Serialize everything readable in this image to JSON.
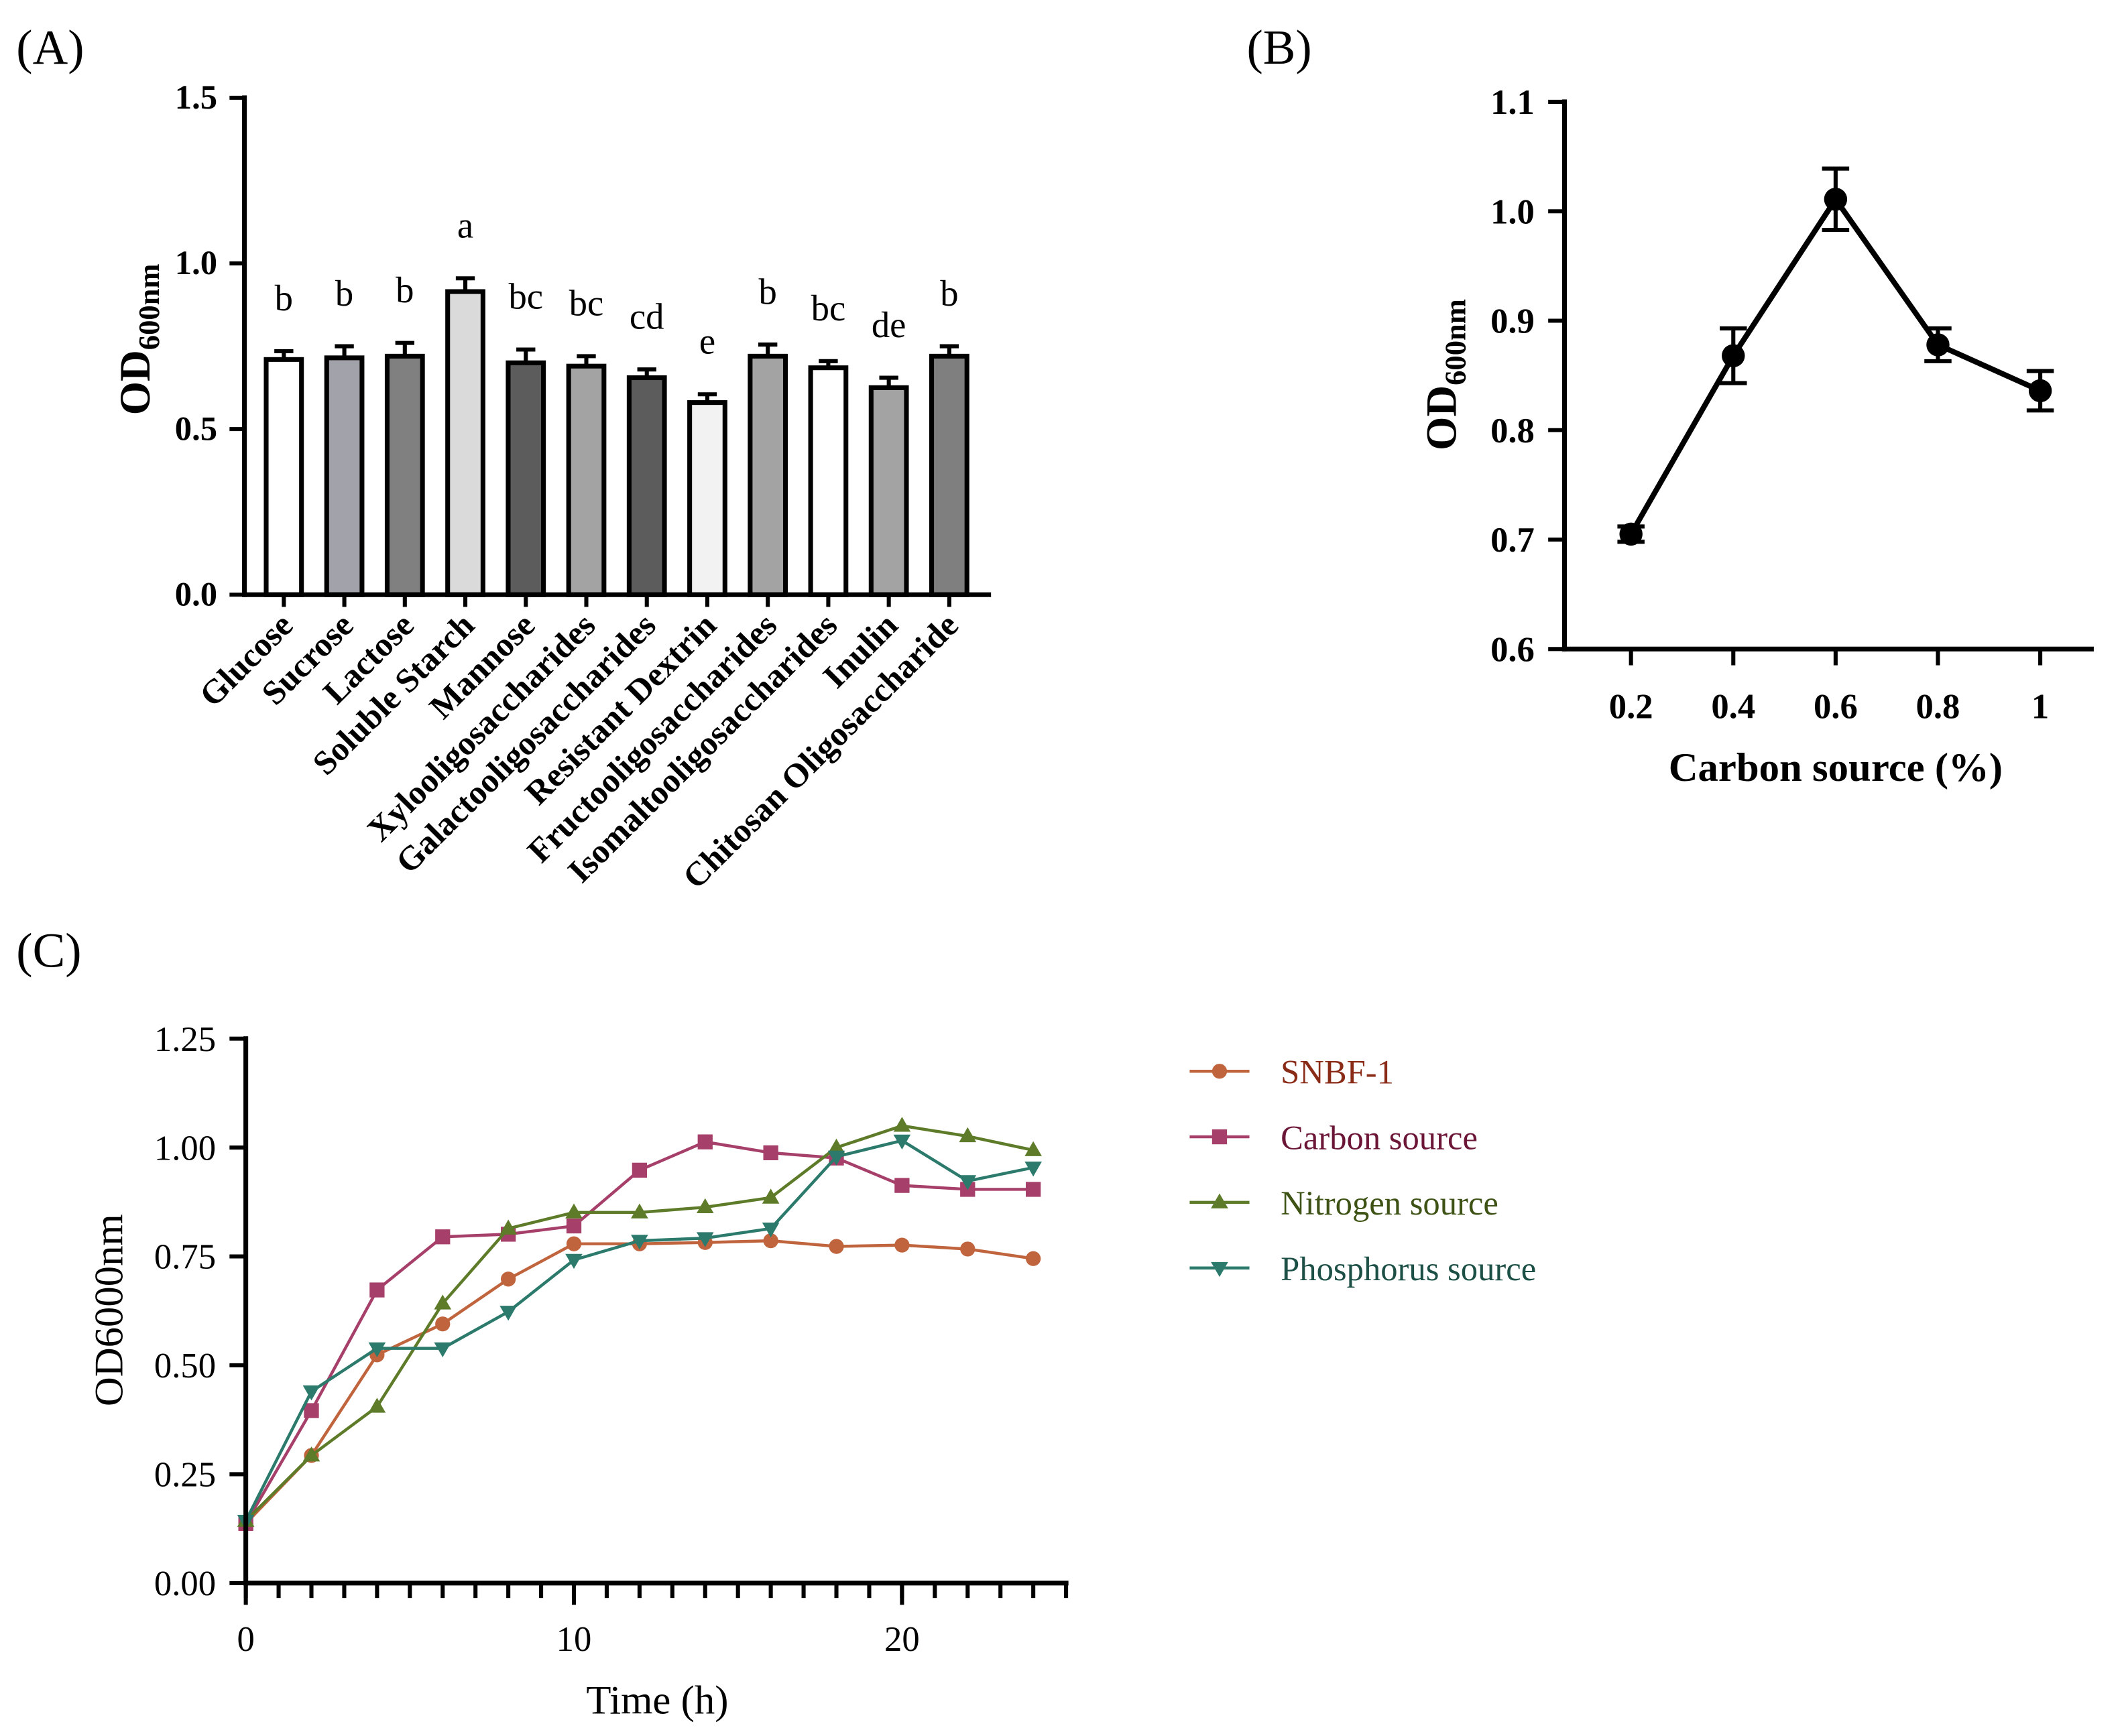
{
  "chart_data": [
    {
      "panel": "(A)",
      "type": "bar",
      "categories": [
        "Glucose",
        "Sucrose",
        "Lactose",
        "Soluble Starch",
        "Mannose",
        "Xylooligosaccharides",
        "Galactooligosaccharides",
        "Resistant Dextrin",
        "Fructooligosaccharides",
        "Isomaltooligosaccharides",
        "Inulin",
        "Chitosan Oligosaccharide"
      ],
      "values": [
        0.71,
        0.715,
        0.72,
        0.915,
        0.7,
        0.69,
        0.655,
        0.58,
        0.72,
        0.685,
        0.625,
        0.72
      ],
      "errors": [
        0.025,
        0.035,
        0.04,
        0.04,
        0.04,
        0.03,
        0.025,
        0.025,
        0.035,
        0.02,
        0.03,
        0.03
      ],
      "letters": [
        "b",
        "b",
        "b",
        "a",
        "bc",
        "bc",
        "cd",
        "e",
        "b",
        "bc",
        "de",
        "b"
      ],
      "bar_colors": [
        "#ffffff",
        "#a2a2aa",
        "#808080",
        "#dadada",
        "#5c5c5c",
        "#a3a3a3",
        "#5c5c5c",
        "#f2f2f2",
        "#a3a3a3",
        "#ffffff",
        "#a3a3a3",
        "#7f7f7f"
      ],
      "ylabel": {
        "main": "OD",
        "sub": "600nm"
      },
      "ylim": [
        0,
        1.5
      ],
      "yticks": [
        0,
        0.5,
        1.0,
        1.5
      ],
      "ytick_labels": [
        "0.0",
        "0.5",
        "1.0",
        "1.5"
      ],
      "grid": false
    },
    {
      "panel": "(B)",
      "type": "line",
      "x": [
        0.2,
        0.4,
        0.6,
        0.8,
        1.0
      ],
      "values": [
        0.705,
        0.868,
        1.011,
        0.878,
        0.836
      ],
      "errors": [
        0.007,
        0.025,
        0.028,
        0.015,
        0.018
      ],
      "color": "#000000",
      "marker": "circle",
      "xlabel": "Carbon source (%)",
      "ylabel": {
        "main": "OD",
        "sub": "600nm"
      },
      "xlim": [
        0.07,
        1.1
      ],
      "ylim": [
        0.6,
        1.1
      ],
      "xticks": [
        0.2,
        0.4,
        0.6,
        0.8,
        1.0
      ],
      "xtick_labels": [
        "0.2",
        "0.4",
        "0.6",
        "0.8",
        "1"
      ],
      "yticks": [
        0.6,
        0.7,
        0.8,
        0.9,
        1.0,
        1.1
      ],
      "ytick_labels": [
        "0.6",
        "0.7",
        "0.8",
        "0.9",
        "1.0",
        "1.1"
      ],
      "grid": false
    },
    {
      "panel": "(C)",
      "type": "line",
      "x": [
        0,
        2,
        4,
        6,
        8,
        10,
        12,
        14,
        16,
        18,
        20,
        22,
        24
      ],
      "series": [
        {
          "name": "SNBF-1",
          "marker": "circle",
          "color": "#c0643d",
          "text_color": "#8a2b17",
          "values": [
            0.137,
            0.293,
            0.524,
            0.595,
            0.698,
            0.779,
            0.779,
            0.782,
            0.786,
            0.773,
            0.776,
            0.767,
            0.745
          ]
        },
        {
          "name": "Carbon source",
          "marker": "square",
          "color": "#a63f69",
          "text_color": "#6b1537",
          "values": [
            0.137,
            0.396,
            0.673,
            0.795,
            0.801,
            0.82,
            0.948,
            1.013,
            0.988,
            0.976,
            0.913,
            0.904,
            0.904
          ]
        },
        {
          "name": "Nitrogen source",
          "marker": "triangle-up",
          "color": "#5d7b29",
          "text_color": "#3d5214",
          "values": [
            0.143,
            0.293,
            0.405,
            0.642,
            0.814,
            0.851,
            0.851,
            0.863,
            0.885,
            1.0,
            1.05,
            1.026,
            0.994
          ]
        },
        {
          "name": "Phosphorus source",
          "marker": "triangle-down",
          "color": "#2b7a6c",
          "text_color": "#1c4f45",
          "values": [
            0.143,
            0.44,
            0.539,
            0.539,
            0.623,
            0.742,
            0.786,
            0.792,
            0.814,
            0.979,
            1.016,
            0.923,
            0.954
          ]
        }
      ],
      "xlabel": "Time (h)",
      "ylabel": "OD6000nm",
      "xlim": [
        0,
        25
      ],
      "ylim": [
        0,
        1.25
      ],
      "xticks": [
        0,
        10,
        20
      ],
      "xtick_labels": [
        "0",
        "10",
        "20"
      ],
      "minor_xtick_step": 1,
      "yticks": [
        0,
        0.25,
        0.5,
        0.75,
        1.0,
        1.25
      ],
      "ytick_labels": [
        "0.00",
        "0.25",
        "0.50",
        "0.75",
        "1.00",
        "1.25"
      ],
      "legend": "right",
      "grid": false
    }
  ]
}
